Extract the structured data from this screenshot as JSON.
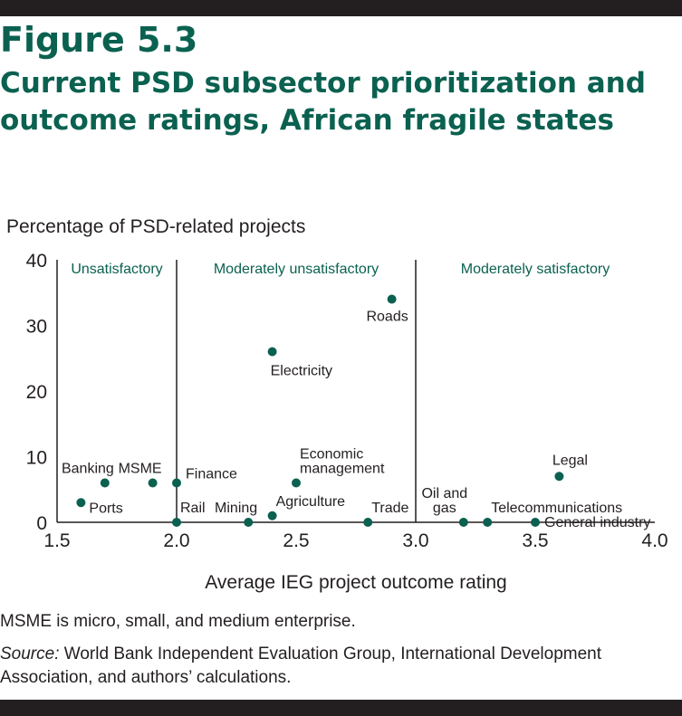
{
  "figure": {
    "label": "Figure 5.3",
    "title": "Current PSD subsector prioritization and outcome ratings, African fragile states"
  },
  "chart_data": {
    "type": "scatter",
    "ylabel": "Percentage of PSD-related projects",
    "xlabel": "Average IEG project outcome rating",
    "xlim": [
      1.5,
      4.0
    ],
    "ylim": [
      0,
      40
    ],
    "x_ticks": [
      "1.5",
      "2.0",
      "2.5",
      "3.0",
      "3.5",
      "4.0"
    ],
    "y_ticks": [
      "0",
      "10",
      "20",
      "30",
      "40"
    ],
    "grid": false,
    "colors": {
      "point": "#0b6150",
      "region_label": "#0b6150",
      "text": "#231f20"
    },
    "region_boundaries": [
      2.0,
      3.0
    ],
    "regions": [
      {
        "label": "Unsatisfactory",
        "x_center": 1.75
      },
      {
        "label": "Moderately unsatisfactory",
        "x_center": 2.5
      },
      {
        "label": "Moderately satisfactory",
        "x_center": 3.5
      }
    ],
    "points": [
      {
        "label": "Roads",
        "x": 2.9,
        "y": 34,
        "anchor": "below"
      },
      {
        "label": "Electricity",
        "x": 2.4,
        "y": 26,
        "anchor": "below-right"
      },
      {
        "label": "Legal",
        "x": 3.6,
        "y": 7,
        "anchor": "above"
      },
      {
        "label": "Economic management",
        "x": 2.5,
        "y": 6,
        "anchor": "above-right"
      },
      {
        "label": "Banking",
        "x": 1.7,
        "y": 6,
        "anchor": "above-left"
      },
      {
        "label": "MSME",
        "x": 1.9,
        "y": 6,
        "anchor": "above-left"
      },
      {
        "label": "Finance",
        "x": 2.0,
        "y": 6,
        "anchor": "right-up"
      },
      {
        "label": "Ports",
        "x": 1.6,
        "y": 3,
        "anchor": "right-down"
      },
      {
        "label": "Rail",
        "x": 2.0,
        "y": 0,
        "anchor": "above-right"
      },
      {
        "label": "Mining",
        "x": 2.3,
        "y": 0,
        "anchor": "above-left"
      },
      {
        "label": "Agriculture",
        "x": 2.4,
        "y": 1,
        "anchor": "above-right"
      },
      {
        "label": "Trade",
        "x": 2.8,
        "y": 0,
        "anchor": "above-right"
      },
      {
        "label": "Oil and gas",
        "x": 3.2,
        "y": 0,
        "anchor": "above-left"
      },
      {
        "label": "Telecommunications",
        "x": 3.3,
        "y": 0,
        "anchor": "above-right"
      },
      {
        "label": "General industry",
        "x": 3.5,
        "y": 0,
        "anchor": "right"
      }
    ]
  },
  "note": "MSME is micro, small, and medium enterprise.",
  "source": {
    "label": "Source:",
    "text": " World Bank Independent Evaluation Group, International Development Association, and authors’ calculations."
  }
}
